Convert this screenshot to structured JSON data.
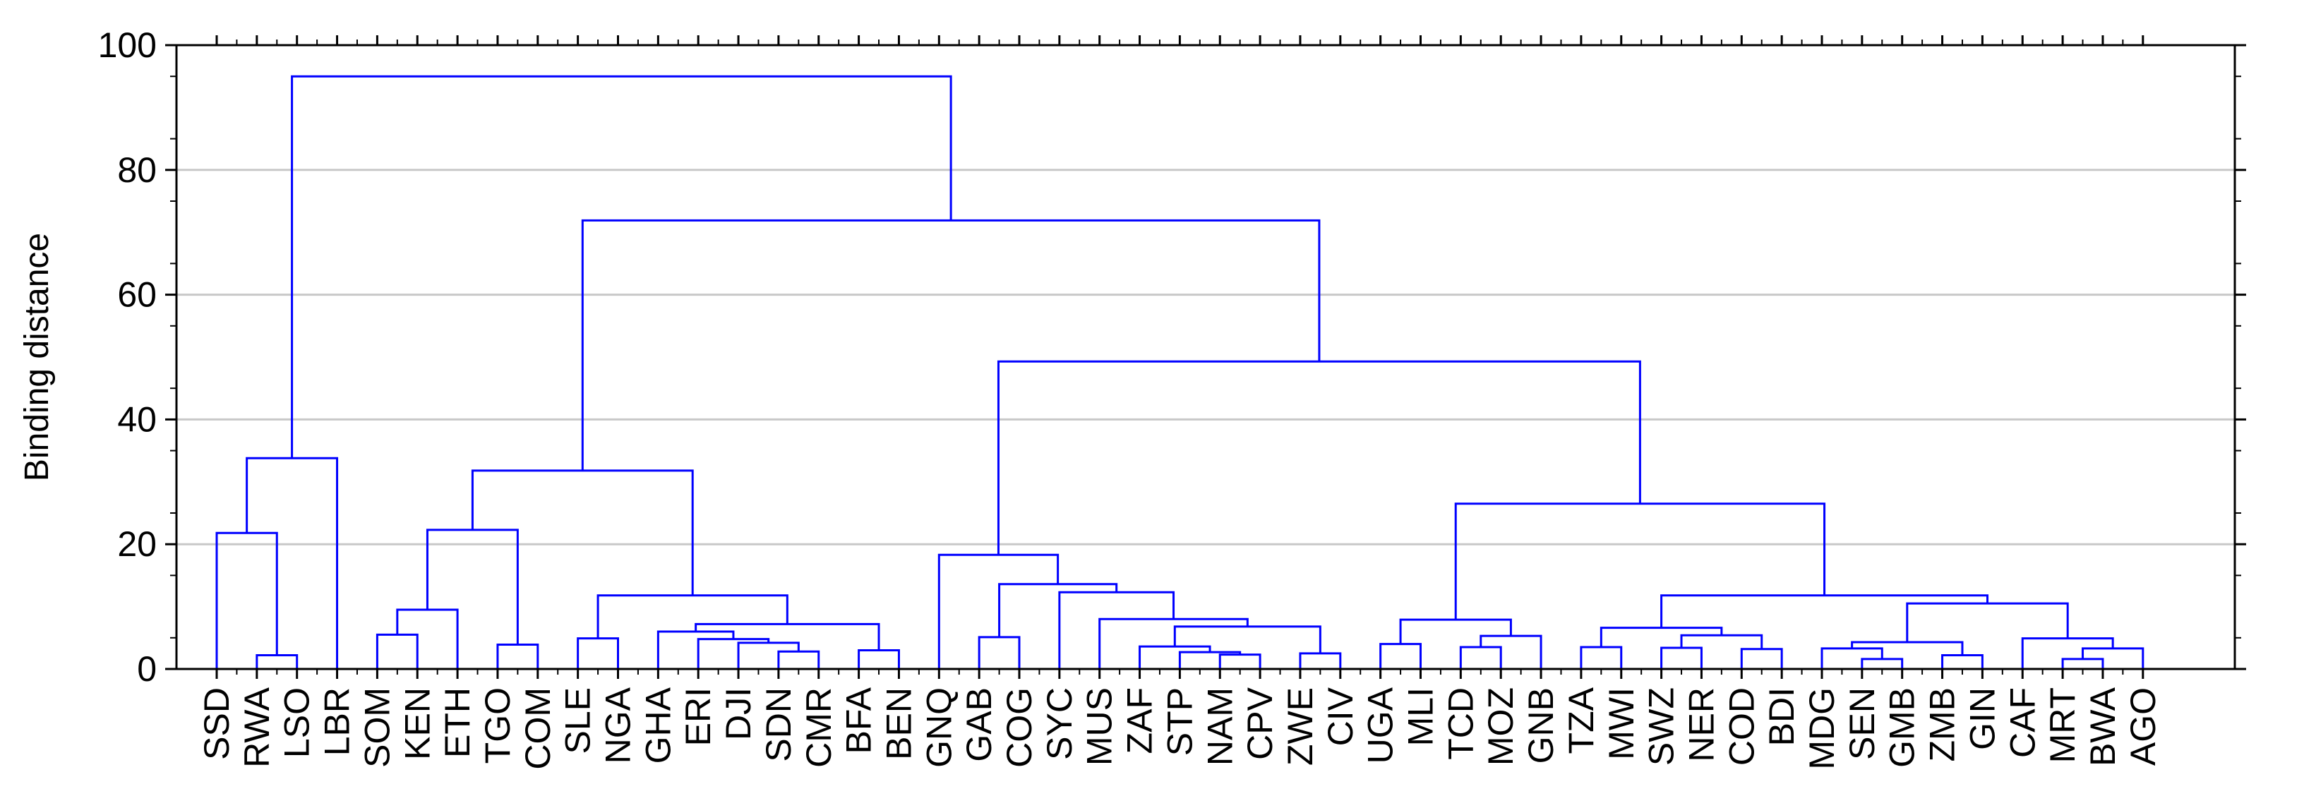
{
  "chart_data": {
    "type": "dendrogram",
    "ylabel": "Binding distance",
    "ylim": [
      0,
      100
    ],
    "yticks": [
      0,
      20,
      40,
      60,
      80,
      100
    ],
    "grid": true,
    "line_color": "#0000ff",
    "leaves": [
      "SSD",
      "RWA",
      "LSO",
      "LBR",
      "SOM",
      "KEN",
      "ETH",
      "TGO",
      "COM",
      "SLE",
      "NGA",
      "GHA",
      "ERI",
      "DJI",
      "SDN",
      "CMR",
      "BFA",
      "BEN",
      "GNQ",
      "GAB",
      "COG",
      "SYC",
      "MUS",
      "ZAF",
      "STP",
      "NAM",
      "CPV",
      "ZWE",
      "CIV",
      "UGA",
      "MLI",
      "TCD",
      "MOZ",
      "GNB",
      "TZA",
      "MWI",
      "SWZ",
      "NER",
      "COD",
      "BDI",
      "MDG",
      "SEN",
      "GMB",
      "ZMB",
      "GIN",
      "CAF",
      "MRT",
      "BWA",
      "AGO"
    ],
    "merges": [
      {
        "a": "RWA",
        "b": "LSO",
        "height": 2.2
      },
      {
        "a": "SSD",
        "b": "RWA,LSO",
        "height": 21.8
      },
      {
        "a": "SSD,RWA,LSO",
        "b": "LBR",
        "height": 33.8
      },
      {
        "a": "SOM",
        "b": "KEN",
        "height": 5.5
      },
      {
        "a": "SOM,KEN",
        "b": "ETH",
        "height": 9.5
      },
      {
        "a": "TGO",
        "b": "COM",
        "height": 3.9
      },
      {
        "a": "SOM,KEN,ETH",
        "b": "TGO,COM",
        "height": 22.3
      },
      {
        "a": "SLE",
        "b": "NGA",
        "height": 4.9
      },
      {
        "a": "SDN",
        "b": "CMR",
        "height": 2.8
      },
      {
        "a": "DJI",
        "b": "SDN,CMR",
        "height": 4.2
      },
      {
        "a": "ERI",
        "b": "DJI,SDN,CMR",
        "height": 4.8
      },
      {
        "a": "GHA",
        "b": "ERI,DJI,SDN,CMR",
        "height": 6.0
      },
      {
        "a": "BFA",
        "b": "BEN",
        "height": 3.0
      },
      {
        "a": "GHA,ERI,DJI,SDN,CMR",
        "b": "BFA,BEN",
        "height": 7.2
      },
      {
        "a": "SLE,NGA",
        "b": "GHA..BEN",
        "height": 11.8
      },
      {
        "a": "SOM..COM",
        "b": "SLE..BEN",
        "height": 31.8
      },
      {
        "a": "GAB",
        "b": "COG",
        "height": 5.1
      },
      {
        "a": "NAM",
        "b": "CPV",
        "height": 2.3
      },
      {
        "a": "STP",
        "b": "NAM,CPV",
        "height": 2.7
      },
      {
        "a": "ZAF",
        "b": "STP,NAM,CPV",
        "height": 3.6
      },
      {
        "a": "ZWE",
        "b": "CIV",
        "height": 2.5
      },
      {
        "a": "ZAF..CPV",
        "b": "ZWE,CIV",
        "height": 6.8
      },
      {
        "a": "MUS",
        "b": "ZAF..CIV",
        "height": 8.0
      },
      {
        "a": "SYC",
        "b": "MUS..CIV",
        "height": 12.3
      },
      {
        "a": "GAB,COG",
        "b": "SYC..CIV",
        "height": 13.6
      },
      {
        "a": "GNQ",
        "b": "GAB..CIV",
        "height": 18.3
      },
      {
        "a": "TCD",
        "b": "MOZ",
        "height": 3.5
      },
      {
        "a": "UGA",
        "b": "MLI",
        "height": 4.0
      },
      {
        "a": "TCD,MOZ",
        "b": "GNB",
        "height": 5.3
      },
      {
        "a": "UGA,MLI",
        "b": "TCD,MOZ,GNB",
        "height": 7.9
      },
      {
        "a": "TZA",
        "b": "MWI",
        "height": 3.5
      },
      {
        "a": "SWZ",
        "b": "NER",
        "height": 3.4
      },
      {
        "a": "COD",
        "b": "BDI",
        "height": 3.2
      },
      {
        "a": "SWZ,NER",
        "b": "COD,BDI",
        "height": 5.4
      },
      {
        "a": "TZA,MWI",
        "b": "SWZ..BDI",
        "height": 6.6
      },
      {
        "a": "SEN",
        "b": "GMB",
        "height": 1.6
      },
      {
        "a": "MDG",
        "b": "SEN,GMB",
        "height": 3.3
      },
      {
        "a": "ZMB",
        "b": "GIN",
        "height": 2.2
      },
      {
        "a": "MDG,SEN,GMB",
        "b": "ZMB,GIN",
        "height": 4.3
      },
      {
        "a": "MRT",
        "b": "BWA",
        "height": 1.6
      },
      {
        "a": "MRT,BWA",
        "b": "AGO",
        "height": 3.3
      },
      {
        "a": "CAF",
        "b": "MRT,BWA,AGO",
        "height": 4.9
      },
      {
        "a": "MDG..GIN",
        "b": "CAF..AGO",
        "height": 10.5
      },
      {
        "a": "TZA..BDI",
        "b": "MDG..AGO",
        "height": 11.8
      },
      {
        "a": "UGA..GNB",
        "b": "TZA..AGO",
        "height": 26.5
      },
      {
        "a": "GNQ..CIV",
        "b": "UGA..AGO",
        "height": 49.3
      },
      {
        "a": "SOM..BEN",
        "b": "GNQ..AGO",
        "height": 71.9
      },
      {
        "a": "SSD..LBR",
        "b": "SOM..AGO",
        "height": 95.0
      }
    ]
  }
}
